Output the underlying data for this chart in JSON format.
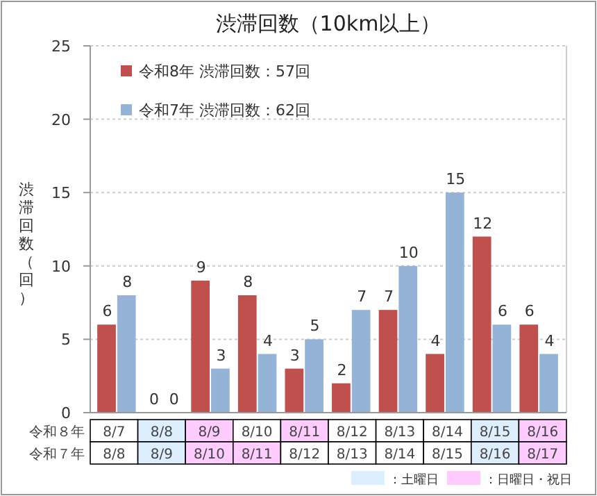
{
  "chart_data": {
    "type": "bar",
    "title": "渋滞回数（10km以上）",
    "ylabel": "渋滞回数（回）",
    "categories": [
      "8/7",
      "8/8",
      "8/9",
      "8/10",
      "8/11",
      "8/12",
      "8/13",
      "8/14",
      "8/15",
      "8/16"
    ],
    "series": [
      {
        "name": "令和8年 渋滞回数：57回",
        "color": "#c0504d",
        "values": [
          6,
          0,
          9,
          8,
          3,
          2,
          7,
          4,
          12,
          6
        ]
      },
      {
        "name": "令和7年 渋滞回数：62回",
        "color": "#95b3d7",
        "values": [
          8,
          0,
          3,
          4,
          5,
          7,
          10,
          15,
          6,
          4
        ]
      }
    ],
    "ylim": [
      0,
      25
    ],
    "yticks": [
      0,
      5,
      10,
      15,
      20,
      25
    ],
    "grid": "y",
    "legend": "top left",
    "data_labels": true,
    "annotations": [
      "令和８年",
      "令和７年",
      "8/8",
      "8/9",
      "8/10",
      "8/11",
      "8/12",
      "8/13",
      "8/14",
      "8/15",
      "8/16",
      "8/17",
      "：土曜日",
      "：日曜日・祝日"
    ]
  }
}
